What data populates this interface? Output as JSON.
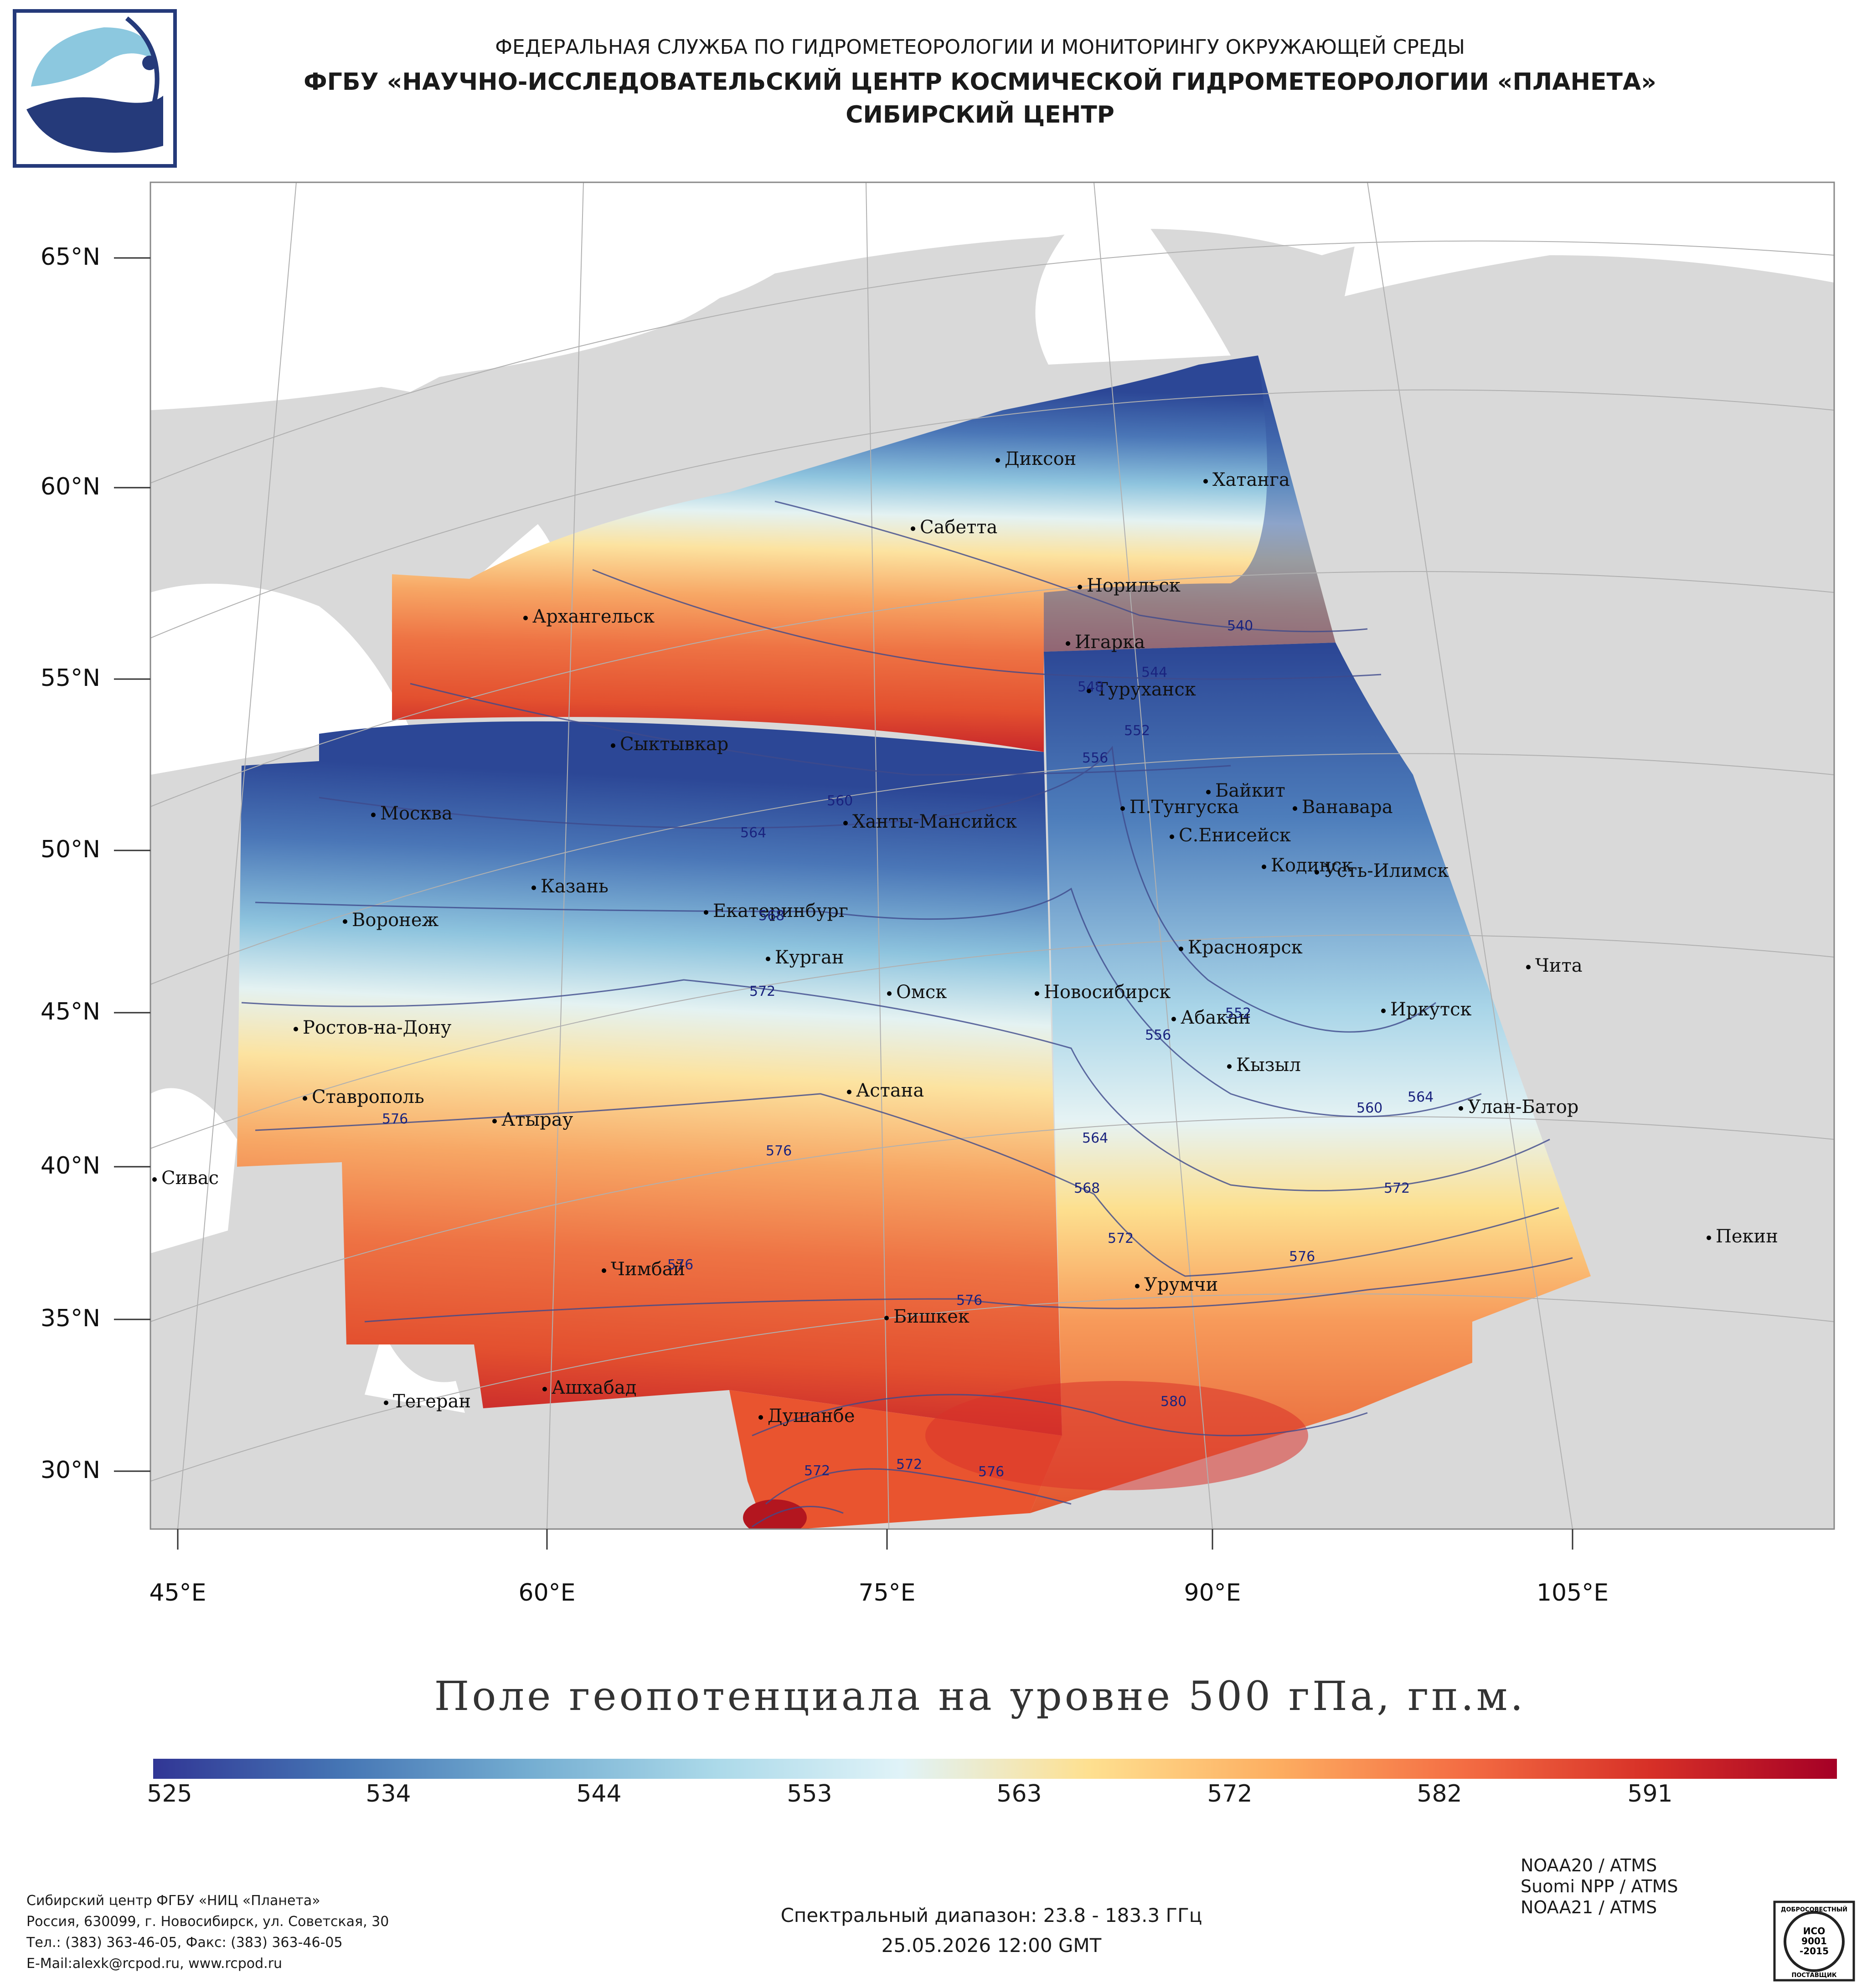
{
  "header": {
    "agency": "ФЕДЕРАЛЬНАЯ СЛУЖБА ПО ГИДРОМЕТЕОРОЛОГИИ И МОНИТОРИНГУ ОКРУЖАЮЩЕЙ СРЕДЫ",
    "institution": "ФГБУ «НАУЧНО-ИССЛЕДОВАТЕЛЬСКИЙ ЦЕНТР КОСМИЧЕСКОЙ ГИДРОМЕТЕОРОЛОГИИ «ПЛАНЕТА»",
    "center": "СИБИРСКИЙ ЦЕНТР"
  },
  "map": {
    "lat_labels": [
      "65°N",
      "60°N",
      "55°N",
      "50°N",
      "45°N",
      "40°N",
      "35°N",
      "30°N"
    ],
    "lon_labels": [
      "45°E",
      "60°E",
      "75°E",
      "90°E",
      "105°E"
    ],
    "cities": {
      "dikson": "Диксон",
      "khatanga": "Хатанга",
      "sabetta": "Сабетта",
      "norilsk": "Норильск",
      "igarka": "Игарка",
      "arkhangelsk": "Архангельск",
      "turukhansk": "Туруханск",
      "syktyvkar": "Сыктывкар",
      "baykit": "Байкит",
      "moscow": "Москва",
      "p_tunguska": "П.Тунгуска",
      "vanavara": "Ванавара",
      "khanty": "Ханты-Мансийск",
      "s_eniseysk": "С.Енисейск",
      "kodinsk": "Кодинск",
      "ust_ilimsk": "Усть-Илимск",
      "kazan": "Казань",
      "ekaterinburg": "Екатеринбург",
      "voronezh": "Воронеж",
      "krasnoyarsk": "Красноярск",
      "kurgan": "Курган",
      "chita": "Чита",
      "omsk": "Омск",
      "novosibirsk": "Новосибирск",
      "irkutsk": "Иркутск",
      "abakan": "Абакан",
      "rostov": "Ростов-на-Дону",
      "kyzyl": "Кызыл",
      "astana": "Астана",
      "stavropol": "Ставрополь",
      "ulan_bator": "Улан-Батор",
      "atyrau": "Атырау",
      "sivas": "Сивас",
      "pekin": "Пекин",
      "chimbay": "Чимбай",
      "urumchi": "Урумчи",
      "bishkek": "Бишкек",
      "tegeran": "Тегеран",
      "ashkhabad": "Ашхабад",
      "dushanbe": "Душанбе"
    },
    "contour_labels": [
      "540",
      "544",
      "548",
      "552",
      "556",
      "560",
      "564",
      "568",
      "572",
      "576",
      "552",
      "556",
      "560",
      "564",
      "572",
      "576",
      "564",
      "568",
      "572",
      "576",
      "576",
      "580",
      "576",
      "572",
      "572",
      "576"
    ],
    "colors": {
      "land": "#d9d9d9",
      "ocean": "#ffffff",
      "grid": "#b0b0b0",
      "contour": "#3f4a8c"
    }
  },
  "title": "Поле геопотенциала на уровне 500 гПа, гп.м.",
  "colorbar": {
    "ticks": [
      "525",
      "534",
      "544",
      "553",
      "563",
      "572",
      "582",
      "591"
    ],
    "colors": [
      "#313695",
      "#4575b4",
      "#74add1",
      "#abd9e9",
      "#e0f3f8",
      "#fee090",
      "#fdae61",
      "#f46d43",
      "#d73027",
      "#a50026"
    ]
  },
  "footer": {
    "org_lines": [
      "Сибирский центр ФГБУ «НИЦ «Планета»",
      "Россия, 630099, г. Новосибирск, ул. Советская, 30",
      "Тел.: (383) 363-46-05, Факс: (383) 363-46-05",
      "E-Mail:alexk@rcpod.ru, www.rcpod.ru"
    ],
    "spectral": "Спектральный диапазон: 23.8 - 183.3 ГГц",
    "datetime": "25.05.2026 12:00 GMT",
    "satellites": [
      "NOAA20 / ATMS",
      "Suomi NPP / ATMS",
      "NOAA21 / ATMS"
    ],
    "seal": {
      "top": "ДОБРОСОВЕСТНЫЙ",
      "mid1": "ИСО",
      "mid2": "9001",
      "mid3": "-2015",
      "bottom": "ПОСТАВЩИК"
    }
  }
}
